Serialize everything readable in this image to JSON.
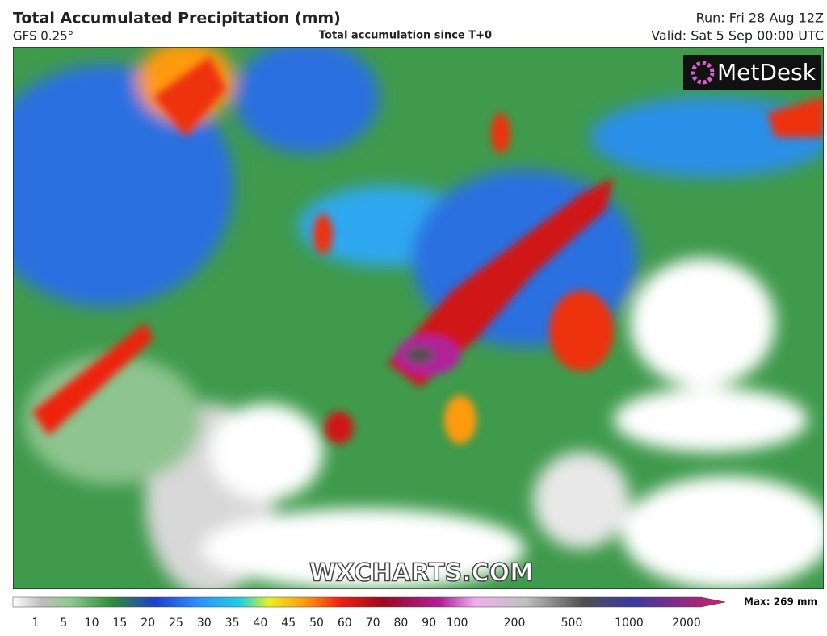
{
  "header": {
    "title": "Total Accumulated Precipitation (mm)",
    "model": "GFS 0.25°",
    "subtitle": "Total accumulation since T+0",
    "run": "Run: Fri 28 Aug 12Z",
    "valid": "Valid: Sat 5 Sep 00:00 UTC"
  },
  "logo": "MetDesk",
  "watermark": "WXCHARTS.COM",
  "colorbar": {
    "labels": [
      1,
      5,
      10,
      15,
      20,
      25,
      30,
      35,
      40,
      45,
      50,
      60,
      70,
      80,
      90,
      100,
      200,
      500,
      1000,
      2000
    ],
    "max_label": "Max: 269 mm"
  }
}
